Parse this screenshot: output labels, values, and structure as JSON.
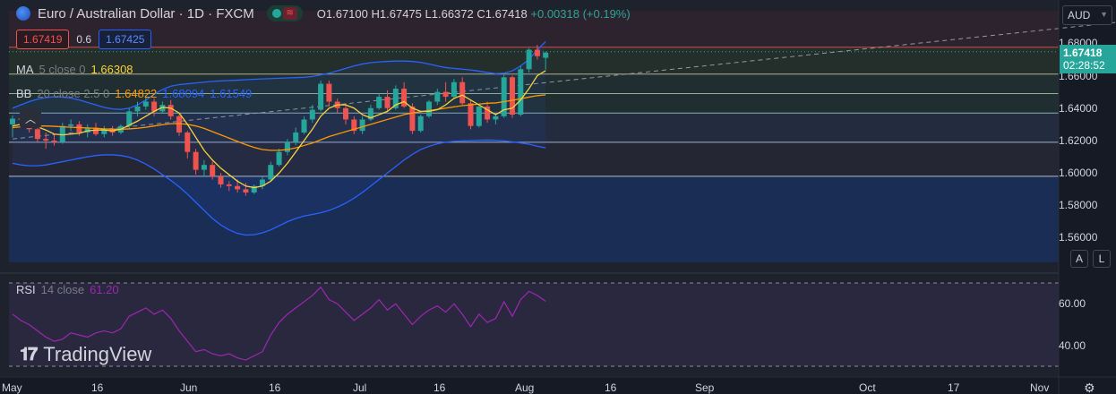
{
  "header": {
    "symbol_title": "Euro / Australian Dollar · 1D · FXCM",
    "ohlc": {
      "o_label": "O",
      "o": "1.67100",
      "h_label": "H",
      "h": "1.67475",
      "l_label": "L",
      "l": "1.66372",
      "c_label": "C",
      "c": "1.67418",
      "change": "+0.00318 (+0.19%)"
    },
    "eye_icon": "eye-icon",
    "flag_icon": "flag-icon"
  },
  "trade": {
    "bid": "1.67419",
    "spread": "0.6",
    "ask": "1.67425"
  },
  "indicators": {
    "ma": {
      "name": "MA",
      "params": "5 close 0",
      "value": "1.66308"
    },
    "bb": {
      "name": "BB",
      "params": "20 close 2.5 0",
      "basis": "1.64822",
      "upper": "1.68094",
      "lower": "1.61549"
    },
    "rsi": {
      "name": "RSI",
      "params": "14 close",
      "value": "61.20"
    }
  },
  "price_axis": {
    "currency": "AUD",
    "labels": [
      "1.68000",
      "1.66000",
      "1.64000",
      "1.62000",
      "1.60000",
      "1.58000",
      "1.56000"
    ],
    "current_price": "1.67418",
    "countdown": "02:28:52",
    "rsi_labels": [
      "60.00",
      "40.00"
    ],
    "mode_buttons": [
      "A",
      "L"
    ]
  },
  "time_axis": {
    "labels": [
      "May",
      "16",
      "Jun",
      "16",
      "Jul",
      "16",
      "Aug",
      "16",
      "Sep",
      "Oct",
      "17",
      "Nov"
    ]
  },
  "watermark": "TradingView",
  "colors": {
    "background": "#161a25",
    "up": "#26a69a",
    "down": "#ef5350",
    "ma": "#f7d23d",
    "bb_basis": "#ff9800",
    "bb_bands": "#2962ff",
    "rsi": "#9c27b0",
    "zone_fill": "#1a2d55",
    "level_line": "#d1d4dc"
  },
  "chart_data": {
    "type": "candlestick",
    "timeframe": "1D",
    "x_range": [
      "2024-05-01",
      "2024-11-08"
    ],
    "ylim": [
      1.54,
      1.7
    ],
    "x_unit": "trading day index",
    "price_levels": [
      1.6775,
      1.661,
      1.649,
      1.637,
      1.619,
      1.598
    ],
    "zone": {
      "from": 1.545,
      "to": 1.598
    },
    "trendline": {
      "from": [
        0,
        1.621
      ],
      "to": [
        142,
        1.698
      ]
    },
    "candles": [
      {
        "o": 1.63,
        "h": 1.6355,
        "l": 1.622,
        "c": 1.6335
      },
      {
        "o": 1.6335,
        "h": 1.638,
        "l": 1.629,
        "c": 1.633
      },
      {
        "o": 1.633,
        "h": 1.635,
        "l": 1.625,
        "c": 1.627
      },
      {
        "o": 1.627,
        "h": 1.63,
        "l": 1.619,
        "c": 1.621
      },
      {
        "o": 1.621,
        "h": 1.625,
        "l": 1.615,
        "c": 1.62
      },
      {
        "o": 1.62,
        "h": 1.624,
        "l": 1.617,
        "c": 1.619
      },
      {
        "o": 1.619,
        "h": 1.631,
        "l": 1.618,
        "c": 1.629
      },
      {
        "o": 1.629,
        "h": 1.633,
        "l": 1.626,
        "c": 1.63
      },
      {
        "o": 1.63,
        "h": 1.632,
        "l": 1.623,
        "c": 1.625
      },
      {
        "o": 1.625,
        "h": 1.63,
        "l": 1.622,
        "c": 1.628
      },
      {
        "o": 1.628,
        "h": 1.631,
        "l": 1.623,
        "c": 1.624
      },
      {
        "o": 1.624,
        "h": 1.629,
        "l": 1.622,
        "c": 1.627
      },
      {
        "o": 1.627,
        "h": 1.629,
        "l": 1.623,
        "c": 1.625
      },
      {
        "o": 1.625,
        "h": 1.63,
        "l": 1.624,
        "c": 1.629
      },
      {
        "o": 1.629,
        "h": 1.64,
        "l": 1.627,
        "c": 1.638
      },
      {
        "o": 1.638,
        "h": 1.644,
        "l": 1.635,
        "c": 1.641
      },
      {
        "o": 1.641,
        "h": 1.647,
        "l": 1.639,
        "c": 1.644
      },
      {
        "o": 1.644,
        "h": 1.646,
        "l": 1.635,
        "c": 1.638
      },
      {
        "o": 1.638,
        "h": 1.644,
        "l": 1.637,
        "c": 1.642
      },
      {
        "o": 1.642,
        "h": 1.645,
        "l": 1.633,
        "c": 1.635
      },
      {
        "o": 1.635,
        "h": 1.636,
        "l": 1.623,
        "c": 1.625
      },
      {
        "o": 1.625,
        "h": 1.626,
        "l": 1.609,
        "c": 1.613
      },
      {
        "o": 1.613,
        "h": 1.615,
        "l": 1.599,
        "c": 1.602
      },
      {
        "o": 1.602,
        "h": 1.608,
        "l": 1.598,
        "c": 1.605
      },
      {
        "o": 1.605,
        "h": 1.607,
        "l": 1.596,
        "c": 1.598
      },
      {
        "o": 1.598,
        "h": 1.6,
        "l": 1.591,
        "c": 1.593
      },
      {
        "o": 1.593,
        "h": 1.595,
        "l": 1.589,
        "c": 1.592
      },
      {
        "o": 1.592,
        "h": 1.596,
        "l": 1.588,
        "c": 1.59
      },
      {
        "o": 1.59,
        "h": 1.594,
        "l": 1.586,
        "c": 1.588
      },
      {
        "o": 1.588,
        "h": 1.593,
        "l": 1.587,
        "c": 1.592
      },
      {
        "o": 1.592,
        "h": 1.598,
        "l": 1.59,
        "c": 1.596
      },
      {
        "o": 1.596,
        "h": 1.607,
        "l": 1.595,
        "c": 1.605
      },
      {
        "o": 1.605,
        "h": 1.615,
        "l": 1.604,
        "c": 1.613
      },
      {
        "o": 1.613,
        "h": 1.621,
        "l": 1.611,
        "c": 1.619
      },
      {
        "o": 1.619,
        "h": 1.628,
        "l": 1.617,
        "c": 1.625
      },
      {
        "o": 1.625,
        "h": 1.635,
        "l": 1.624,
        "c": 1.633
      },
      {
        "o": 1.633,
        "h": 1.642,
        "l": 1.631,
        "c": 1.639
      },
      {
        "o": 1.639,
        "h": 1.657,
        "l": 1.638,
        "c": 1.655
      },
      {
        "o": 1.655,
        "h": 1.657,
        "l": 1.641,
        "c": 1.644
      },
      {
        "o": 1.644,
        "h": 1.646,
        "l": 1.637,
        "c": 1.64
      },
      {
        "o": 1.64,
        "h": 1.643,
        "l": 1.63,
        "c": 1.633
      },
      {
        "o": 1.633,
        "h": 1.635,
        "l": 1.624,
        "c": 1.626
      },
      {
        "o": 1.626,
        "h": 1.635,
        "l": 1.624,
        "c": 1.633
      },
      {
        "o": 1.633,
        "h": 1.642,
        "l": 1.632,
        "c": 1.64
      },
      {
        "o": 1.64,
        "h": 1.649,
        "l": 1.639,
        "c": 1.647
      },
      {
        "o": 1.647,
        "h": 1.651,
        "l": 1.638,
        "c": 1.64
      },
      {
        "o": 1.64,
        "h": 1.654,
        "l": 1.639,
        "c": 1.652
      },
      {
        "o": 1.652,
        "h": 1.656,
        "l": 1.64,
        "c": 1.641
      },
      {
        "o": 1.641,
        "h": 1.643,
        "l": 1.624,
        "c": 1.626
      },
      {
        "o": 1.626,
        "h": 1.636,
        "l": 1.625,
        "c": 1.635
      },
      {
        "o": 1.635,
        "h": 1.645,
        "l": 1.634,
        "c": 1.644
      },
      {
        "o": 1.644,
        "h": 1.652,
        "l": 1.642,
        "c": 1.65
      },
      {
        "o": 1.65,
        "h": 1.656,
        "l": 1.644,
        "c": 1.647
      },
      {
        "o": 1.647,
        "h": 1.658,
        "l": 1.646,
        "c": 1.656
      },
      {
        "o": 1.656,
        "h": 1.659,
        "l": 1.642,
        "c": 1.643
      },
      {
        "o": 1.643,
        "h": 1.645,
        "l": 1.627,
        "c": 1.629
      },
      {
        "o": 1.629,
        "h": 1.642,
        "l": 1.628,
        "c": 1.641
      },
      {
        "o": 1.641,
        "h": 1.644,
        "l": 1.631,
        "c": 1.633
      },
      {
        "o": 1.633,
        "h": 1.636,
        "l": 1.63,
        "c": 1.635
      },
      {
        "o": 1.635,
        "h": 1.661,
        "l": 1.634,
        "c": 1.659
      },
      {
        "o": 1.659,
        "h": 1.66,
        "l": 1.634,
        "c": 1.636
      },
      {
        "o": 1.636,
        "h": 1.666,
        "l": 1.635,
        "c": 1.664
      },
      {
        "o": 1.664,
        "h": 1.677,
        "l": 1.662,
        "c": 1.676
      },
      {
        "o": 1.676,
        "h": 1.679,
        "l": 1.67,
        "c": 1.672
      },
      {
        "o": 1.671,
        "h": 1.6748,
        "l": 1.6637,
        "c": 1.6742
      }
    ],
    "series": [
      {
        "name": "MA 5 close 0",
        "values": [
          1.629,
          1.63,
          1.6295,
          1.6285,
          1.6265,
          1.624,
          1.6235,
          1.624,
          1.6245,
          1.626,
          1.6265,
          1.6265,
          1.626,
          1.627,
          1.6295,
          1.632,
          1.635,
          1.638,
          1.6405,
          1.64,
          1.637,
          1.63,
          1.622,
          1.614,
          1.608,
          1.603,
          1.599,
          1.595,
          1.592,
          1.591,
          1.592,
          1.595,
          1.6,
          1.606,
          1.613,
          1.62,
          1.627,
          1.635,
          1.64,
          1.642,
          1.642,
          1.64,
          1.636,
          1.634,
          1.636,
          1.638,
          1.642,
          1.644,
          1.64,
          1.638,
          1.638,
          1.639,
          1.642,
          1.646,
          1.648,
          1.645,
          1.642,
          1.639,
          1.636,
          1.639,
          1.64,
          1.645,
          1.652,
          1.66,
          1.6631
        ]
      },
      {
        "name": "BB basis",
        "values": [
          1.628,
          1.6285,
          1.6288,
          1.629,
          1.629,
          1.6288,
          1.6285,
          1.6282,
          1.628,
          1.6278,
          1.6275,
          1.6272,
          1.627,
          1.627,
          1.6272,
          1.6276,
          1.6282,
          1.629,
          1.6298,
          1.6304,
          1.6305,
          1.63,
          1.629,
          1.6275,
          1.6255,
          1.6235,
          1.6215,
          1.6195,
          1.6175,
          1.6158,
          1.6145,
          1.614,
          1.614,
          1.6145,
          1.6155,
          1.617,
          1.6185,
          1.6205,
          1.6225,
          1.624,
          1.6255,
          1.627,
          1.6285,
          1.63,
          1.6315,
          1.633,
          1.6345,
          1.636,
          1.637,
          1.6378,
          1.6385,
          1.6392,
          1.64,
          1.6408,
          1.6415,
          1.642,
          1.6425,
          1.643,
          1.6432,
          1.644,
          1.6448,
          1.6458,
          1.6468,
          1.6477,
          1.6482
        ]
      },
      {
        "name": "BB upper",
        "values": [
          1.64,
          1.642,
          1.644,
          1.6455,
          1.6465,
          1.647,
          1.6468,
          1.6462,
          1.645,
          1.6435,
          1.642,
          1.6405,
          1.6395,
          1.6392,
          1.64,
          1.642,
          1.645,
          1.6485,
          1.6515,
          1.6535,
          1.6545,
          1.655,
          1.6555,
          1.656,
          1.6565,
          1.6568,
          1.657,
          1.6572,
          1.6575,
          1.6578,
          1.658,
          1.6582,
          1.6584,
          1.6586,
          1.6588,
          1.659,
          1.6595,
          1.6605,
          1.6615,
          1.663,
          1.6645,
          1.666,
          1.6672,
          1.668,
          1.6685,
          1.6688,
          1.669,
          1.669,
          1.6688,
          1.6682,
          1.6672,
          1.666,
          1.665,
          1.6645,
          1.664,
          1.6635,
          1.6628,
          1.662,
          1.6612,
          1.6615,
          1.663,
          1.666,
          1.67,
          1.676,
          1.681
        ]
      },
      {
        "name": "BB lower",
        "values": [
          1.606,
          1.605,
          1.6045,
          1.6045,
          1.605,
          1.606,
          1.607,
          1.608,
          1.609,
          1.61,
          1.6108,
          1.6112,
          1.6112,
          1.6108,
          1.6098,
          1.608,
          1.6055,
          1.6025,
          1.599,
          1.5955,
          1.5915,
          1.587,
          1.582,
          1.577,
          1.572,
          1.568,
          1.565,
          1.5628,
          1.5618,
          1.562,
          1.5632,
          1.565,
          1.5675,
          1.57,
          1.572,
          1.5735,
          1.5745,
          1.5755,
          1.577,
          1.579,
          1.5815,
          1.5845,
          1.588,
          1.592,
          1.596,
          1.6,
          1.604,
          1.608,
          1.6115,
          1.6145,
          1.6165,
          1.618,
          1.619,
          1.6195,
          1.6198,
          1.62,
          1.6202,
          1.6203,
          1.6202,
          1.6198,
          1.6192,
          1.6185,
          1.6178,
          1.6165,
          1.6155
        ]
      },
      {
        "name": "RSI 14 close",
        "values": [
          55,
          52,
          50,
          47,
          44,
          42,
          43,
          46,
          45,
          44,
          46,
          47,
          46,
          48,
          54,
          56,
          58,
          55,
          57,
          53,
          47,
          42,
          37,
          38,
          36,
          35,
          36,
          34,
          33,
          35,
          37,
          45,
          51,
          55,
          58,
          61,
          64,
          68,
          62,
          60,
          56,
          52,
          55,
          58,
          62,
          57,
          60,
          55,
          50,
          54,
          57,
          59,
          56,
          60,
          55,
          49,
          55,
          51,
          53,
          61,
          54,
          62,
          66,
          64,
          61.2
        ]
      }
    ]
  }
}
